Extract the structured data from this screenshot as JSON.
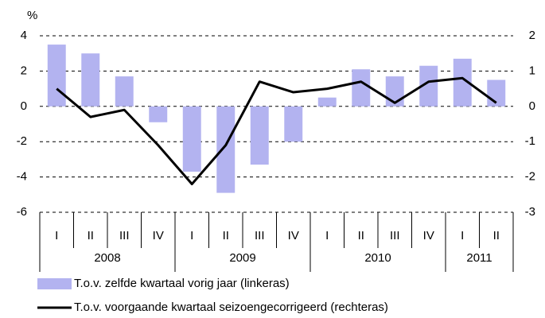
{
  "chart_data": {
    "type": "bar_line",
    "y_label": "%",
    "categories": [
      "I",
      "II",
      "III",
      "IV",
      "I",
      "II",
      "III",
      "IV",
      "I",
      "II",
      "III",
      "IV",
      "I",
      "II"
    ],
    "category_groups": [
      "2008",
      "2009",
      "2010",
      "2011"
    ],
    "series": [
      {
        "name": "T.o.v. zelfde kwartaal vorig jaar (linkeras)",
        "type": "bar",
        "color": "#b3b3f0",
        "values": [
          3.5,
          3.0,
          1.7,
          -0.9,
          -3.7,
          -4.9,
          -3.3,
          -2.0,
          0.5,
          2.1,
          1.7,
          2.3,
          2.7,
          1.5
        ]
      },
      {
        "name": "T.o.v. voorgaande kwartaal seizoengecorrigeerd (rechteras)",
        "type": "line",
        "color": "#000000",
        "axis": "y2",
        "values": [
          0.5,
          -0.3,
          -0.1,
          -1.1,
          -2.2,
          -1.1,
          0.7,
          0.4,
          0.5,
          0.7,
          0.1,
          0.7,
          0.8,
          0.1
        ]
      }
    ],
    "ylim": [
      -6,
      4
    ],
    "yticks": [
      -6,
      -4,
      -2,
      0,
      2,
      4
    ],
    "y2lim": [
      -3,
      2
    ],
    "y2ticks": [
      -3,
      -2,
      -1,
      0,
      1,
      2
    ],
    "grid": true
  }
}
